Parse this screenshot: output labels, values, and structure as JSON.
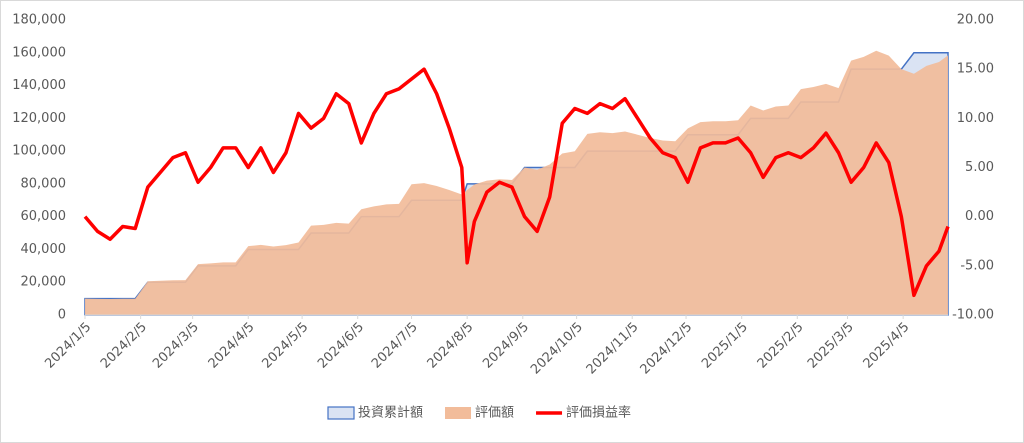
{
  "chart_data": {
    "type": "combo",
    "x": [
      "2024/1/5",
      "2024/1/12",
      "2024/1/19",
      "2024/1/26",
      "2024/2/2",
      "2024/2/9",
      "2024/2/16",
      "2024/2/23",
      "2024/3/1",
      "2024/3/8",
      "2024/3/15",
      "2024/3/22",
      "2024/3/29",
      "2024/4/5",
      "2024/4/12",
      "2024/4/19",
      "2024/4/26",
      "2024/5/3",
      "2024/5/10",
      "2024/5/17",
      "2024/5/24",
      "2024/5/31",
      "2024/6/7",
      "2024/6/14",
      "2024/6/21",
      "2024/6/28",
      "2024/7/5",
      "2024/7/12",
      "2024/7/19",
      "2024/7/26",
      "2024/8/2",
      "2024/8/5",
      "2024/8/9",
      "2024/8/16",
      "2024/8/23",
      "2024/8/30",
      "2024/9/6",
      "2024/9/13",
      "2024/9/20",
      "2024/9/27",
      "2024/10/4",
      "2024/10/11",
      "2024/10/18",
      "2024/10/25",
      "2024/11/1",
      "2024/11/8",
      "2024/11/15",
      "2024/11/22",
      "2024/11/29",
      "2024/12/6",
      "2024/12/13",
      "2024/12/20",
      "2024/12/27",
      "2025/1/3",
      "2025/1/10",
      "2025/1/17",
      "2025/1/24",
      "2025/1/31",
      "2025/2/7",
      "2025/2/14",
      "2025/2/21",
      "2025/2/28",
      "2025/3/7",
      "2025/3/14",
      "2025/3/21",
      "2025/3/28",
      "2025/4/4",
      "2025/4/11",
      "2025/4/18",
      "2025/4/25",
      "2025/4/30"
    ],
    "series": [
      {
        "name": "投資累計額",
        "type": "area",
        "color": "#dae3f3",
        "stroke": "#4472c4",
        "values": [
          10000,
          10000,
          10000,
          10000,
          10000,
          20000,
          20000,
          20000,
          20000,
          30000,
          30000,
          30000,
          30000,
          40000,
          40000,
          40000,
          40000,
          40000,
          50000,
          50000,
          50000,
          50000,
          60000,
          60000,
          60000,
          60000,
          70000,
          70000,
          70000,
          70000,
          70000,
          80000,
          80000,
          80000,
          80000,
          80000,
          90000,
          90000,
          90000,
          90000,
          90000,
          100000,
          100000,
          100000,
          100000,
          100000,
          100000,
          100000,
          100000,
          110000,
          110000,
          110000,
          110000,
          110000,
          120000,
          120000,
          120000,
          120000,
          130000,
          130000,
          130000,
          130000,
          150000,
          150000,
          150000,
          150000,
          150000,
          160000,
          160000,
          160000,
          160000
        ]
      },
      {
        "name": "評価額",
        "type": "area",
        "color": "#f2bc9a",
        "values": [
          10000,
          9850,
          9770,
          9900,
          9880,
          20600,
          20900,
          21200,
          21300,
          31050,
          31500,
          32100,
          32100,
          42000,
          42800,
          41800,
          42600,
          44200,
          54500,
          55000,
          56250,
          55750,
          64500,
          66300,
          67500,
          67800,
          79800,
          80500,
          78750,
          76300,
          73500,
          76240,
          79600,
          82000,
          82800,
          82400,
          90000,
          88650,
          91800,
          98550,
          99900,
          110500,
          111500,
          111000,
          112000,
          110000,
          108000,
          106500,
          106000,
          113850,
          117700,
          118250,
          118250,
          118800,
          127800,
          124800,
          127200,
          127800,
          137800,
          139100,
          141050,
          138450,
          155250,
          157500,
          161250,
          158250,
          150000,
          147200,
          152000,
          154400,
          158400
        ]
      },
      {
        "name": "評価損益率",
        "type": "line",
        "axis": "y2",
        "color": "#ff0000",
        "values": [
          0,
          -1.5,
          -2.3,
          -1,
          -1.2,
          3,
          4.5,
          6,
          6.5,
          3.5,
          5,
          7,
          7,
          5,
          7,
          4.5,
          6.5,
          10.5,
          9,
          10,
          12.5,
          11.5,
          7.5,
          10.5,
          12.5,
          13,
          14,
          15,
          12.5,
          9,
          5,
          -4.7,
          -0.5,
          2.5,
          3.5,
          3,
          0,
          -1.5,
          2,
          9.5,
          11,
          10.5,
          11.5,
          11,
          12,
          10,
          8,
          6.5,
          6,
          3.5,
          7,
          7.5,
          7.5,
          8,
          6.5,
          4,
          6,
          6.5,
          6,
          7,
          8.5,
          6.5,
          3.5,
          5,
          7.5,
          5.5,
          0,
          -8,
          -5,
          -3.5,
          -1
        ]
      }
    ],
    "xlim": [
      "2024/1/5",
      "2025/4/30"
    ],
    "xticks": [
      "2024/1/5",
      "2024/2/5",
      "2024/3/5",
      "2024/4/5",
      "2024/5/5",
      "2024/6/5",
      "2024/7/5",
      "2024/8/5",
      "2024/9/5",
      "2024/10/5",
      "2024/11/5",
      "2024/12/5",
      "2025/1/5",
      "2025/2/5",
      "2025/3/5",
      "2025/4/5"
    ],
    "ylim": [
      0,
      180000
    ],
    "yticks": [
      {
        "value": 0,
        "label": "0"
      },
      {
        "value": 20000,
        "label": "20,000"
      },
      {
        "value": 40000,
        "label": "40,000"
      },
      {
        "value": 60000,
        "label": "60,000"
      },
      {
        "value": 80000,
        "label": "80,000"
      },
      {
        "value": 100000,
        "label": "100,000"
      },
      {
        "value": 120000,
        "label": "120,000"
      },
      {
        "value": 140000,
        "label": "140,000"
      },
      {
        "value": 160000,
        "label": "160,000"
      },
      {
        "value": 180000,
        "label": "180,000"
      }
    ],
    "y2lim": [
      -10,
      20
    ],
    "y2ticks": [
      {
        "value": -10,
        "label": "-10.00"
      },
      {
        "value": -5,
        "label": "-5.00"
      },
      {
        "value": 0,
        "label": "0.00"
      },
      {
        "value": 5,
        "label": "5.00"
      },
      {
        "value": 10,
        "label": "10.00"
      },
      {
        "value": 15,
        "label": "15.00"
      },
      {
        "value": 20,
        "label": "20.00"
      }
    ],
    "grid": false,
    "legend": "bottom"
  }
}
